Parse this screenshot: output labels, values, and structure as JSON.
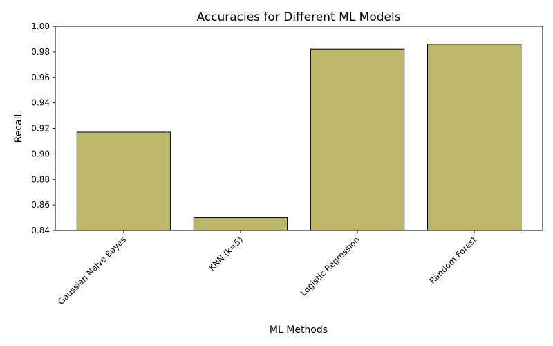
{
  "chart_data": {
    "type": "bar",
    "title": "Accuracies for Different ML Models",
    "xlabel": "ML Methods",
    "ylabel": "Recall",
    "categories": [
      "Gaussian Naive Bayes",
      "KNN (k=5)",
      "Logistic Regression",
      "Random Forest"
    ],
    "values": [
      0.917,
      0.85,
      0.982,
      0.986
    ],
    "ylim": [
      0.84,
      1.0
    ],
    "yticks": [
      "0.84",
      "0.86",
      "0.88",
      "0.90",
      "0.92",
      "0.94",
      "0.96",
      "0.98",
      "1.00"
    ],
    "bar_color": "#bdb76b",
    "edge_color": "#000000",
    "grid": false,
    "legend": false
  }
}
